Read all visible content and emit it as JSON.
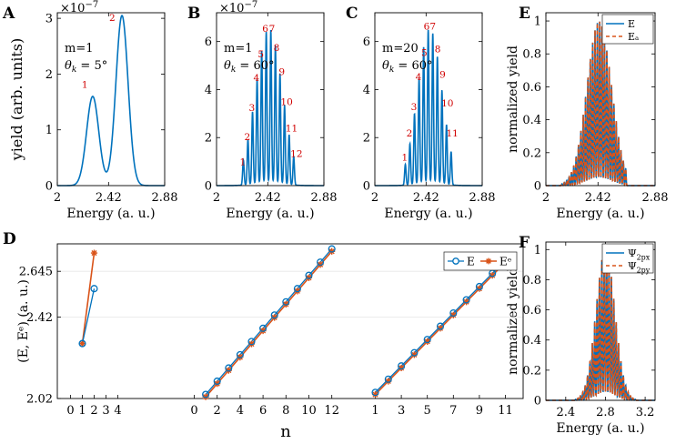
{
  "chart_data": [
    {
      "id": "A",
      "type": "line",
      "panel_label": "A",
      "ylabel": "yield (arb. units)",
      "xlabel": "Energy (a. u.)",
      "exponent_label": "×10",
      "exponent_sup": "−7",
      "xlim": [
        2,
        2.88
      ],
      "ylim": [
        0,
        3.1
      ],
      "xticks": [
        2,
        2.42,
        2.88
      ],
      "xtick_labels": [
        "2",
        "2.42",
        "2.88"
      ],
      "yticks": [
        0,
        1,
        2,
        3
      ],
      "ytick_labels": [
        "0",
        "1",
        "2",
        "3"
      ],
      "annotation_lines": [
        "m=1",
        "θk = 5°"
      ],
      "peaks": [
        {
          "center": 2.29,
          "amp": 1.6,
          "width": 0.05
        },
        {
          "center": 2.53,
          "amp": 3.05,
          "width": 0.05
        }
      ],
      "peak_labels": [
        {
          "text": "1",
          "x": 2.225,
          "y": 1.75
        },
        {
          "text": "2",
          "x": 2.45,
          "y": 2.95
        }
      ]
    },
    {
      "id": "B",
      "type": "line",
      "panel_label": "B",
      "xlabel": "Energy (a. u.)",
      "exponent_label": "×10",
      "exponent_sup": "−7",
      "xlim": [
        2,
        2.88
      ],
      "ylim": [
        0,
        7.2
      ],
      "xticks": [
        2,
        2.42,
        2.88
      ],
      "xtick_labels": [
        "2",
        "2.42",
        "2.88"
      ],
      "yticks": [
        0,
        2,
        4,
        6
      ],
      "ytick_labels": [
        "0",
        "2",
        "4",
        "6"
      ],
      "annotation_lines": [
        "m=1",
        "θk = 60°"
      ],
      "comb": {
        "start": 2.22,
        "step": 0.0375,
        "count": 12,
        "center": 2.43,
        "sigma": 0.11,
        "amp": 6.4,
        "width": 0.006,
        "floor": 0.4
      },
      "peak_labels": [
        {
          "text": "1",
          "x": 2.215,
          "y": 0.85
        },
        {
          "text": "2",
          "x": 2.252,
          "y": 1.9
        },
        {
          "text": "3",
          "x": 2.29,
          "y": 3.1
        },
        {
          "text": "4",
          "x": 2.327,
          "y": 4.35
        },
        {
          "text": "5",
          "x": 2.363,
          "y": 5.35
        },
        {
          "text": "6",
          "x": 2.4,
          "y": 6.4
        },
        {
          "text": "7",
          "x": 2.455,
          "y": 6.4
        },
        {
          "text": "8",
          "x": 2.492,
          "y": 5.6
        },
        {
          "text": "9",
          "x": 2.535,
          "y": 4.6
        },
        {
          "text": "10",
          "x": 2.575,
          "y": 3.35
        },
        {
          "text": "11",
          "x": 2.615,
          "y": 2.25
        },
        {
          "text": "12",
          "x": 2.655,
          "y": 1.2
        }
      ]
    },
    {
      "id": "C",
      "type": "line",
      "panel_label": "C",
      "xlabel": "Energy (a. u.)",
      "xlim": [
        2,
        2.88
      ],
      "ylim": [
        0,
        7.2
      ],
      "xticks": [
        2,
        2.42,
        2.88
      ],
      "xtick_labels": [
        "2",
        "2.42",
        "2.88"
      ],
      "yticks": [
        0,
        2,
        4,
        6
      ],
      "ytick_labels": [
        "0",
        "2",
        "4",
        "6"
      ],
      "annotation_lines": [
        "m=20",
        "θk = 60°"
      ],
      "comb": {
        "start": 2.25,
        "step": 0.0375,
        "count": 11,
        "center": 2.45,
        "sigma": 0.1,
        "amp": 6.4,
        "width": 0.006,
        "floor": 0.4
      },
      "peak_labels": [
        {
          "text": "1",
          "x": 2.245,
          "y": 1.05
        },
        {
          "text": "2",
          "x": 2.283,
          "y": 2.05
        },
        {
          "text": "3",
          "x": 2.32,
          "y": 3.15
        },
        {
          "text": "4",
          "x": 2.358,
          "y": 4.4
        },
        {
          "text": "5",
          "x": 2.405,
          "y": 5.4
        },
        {
          "text": "6",
          "x": 2.425,
          "y": 6.5
        },
        {
          "text": "7",
          "x": 2.475,
          "y": 6.5
        },
        {
          "text": "8",
          "x": 2.515,
          "y": 5.55
        },
        {
          "text": "9",
          "x": 2.555,
          "y": 4.5
        },
        {
          "text": "10",
          "x": 2.595,
          "y": 3.3
        },
        {
          "text": "11",
          "x": 2.635,
          "y": 2.05
        }
      ]
    },
    {
      "id": "E",
      "type": "line",
      "panel_label": "E",
      "ylabel": "normalized yield",
      "xlabel": "Energy (a. u.)",
      "xlim": [
        2,
        2.88
      ],
      "ylim": [
        0,
        1.05
      ],
      "xticks": [
        2,
        2.42,
        2.88
      ],
      "xtick_labels": [
        "2",
        "2.42",
        "2.88"
      ],
      "yticks": [
        0,
        0.2,
        0.4,
        0.6,
        0.8,
        1
      ],
      "ytick_labels": [
        "0",
        "0.2",
        "0.4",
        "0.6",
        "0.8",
        "1"
      ],
      "legend": [
        {
          "label": "E",
          "color": "#0072BD",
          "style": "solid"
        },
        {
          "label": "Eₐ",
          "color": "#D95319",
          "style": "dashed"
        }
      ],
      "legend_position": "top-right",
      "comb": {
        "start": 2.13,
        "step": 0.019,
        "count": 28,
        "center": 2.43,
        "sigma": 0.1,
        "amp": 1.0,
        "width": 0.0035,
        "floor": 0
      }
    },
    {
      "id": "F",
      "type": "line",
      "panel_label": "F",
      "ylabel": "normalized yield",
      "xlabel": "Energy (a. u.)",
      "xlim": [
        2.2,
        3.3
      ],
      "ylim": [
        0,
        1.05
      ],
      "xticks": [
        2.4,
        2.8,
        3.2
      ],
      "xtick_labels": [
        "2.4",
        "2.8",
        "3.2"
      ],
      "yticks": [
        0,
        0.2,
        0.4,
        0.6,
        0.8,
        1
      ],
      "ytick_labels": [
        "0",
        "0.2",
        "0.4",
        "0.6",
        "0.8",
        "1"
      ],
      "legend": [
        {
          "label": "Ψ2px",
          "color": "#0072BD",
          "style": "solid"
        },
        {
          "label": "Ψ2py",
          "color": "#D95319",
          "style": "dashed"
        }
      ],
      "legend_position": "top-right",
      "comb": {
        "start": 2.5,
        "step": 0.024,
        "count": 26,
        "center": 2.8,
        "sigma": 0.095,
        "amp": 1.0,
        "width": 0.0045,
        "floor": 0
      }
    },
    {
      "id": "D",
      "type": "line",
      "panel_label": "D",
      "ylabel": "(E, Eᵉ) (a. u.)",
      "xlabel": "n",
      "ylim": [
        2.02,
        2.78
      ],
      "yticks": [
        2.02,
        2.42,
        2.645
      ],
      "ytick_labels": [
        "2.02",
        "2.42",
        "2.645"
      ],
      "legend": [
        {
          "label": "E",
          "color": "#0072BD",
          "marker": "circle"
        },
        {
          "label": "Eᵉ",
          "color": "#D95319",
          "marker": "star"
        }
      ],
      "legend_position": "top-right",
      "xtick_labels": [
        "0",
        "1",
        "2",
        "3",
        "4",
        "0",
        "2",
        "4",
        "6",
        "8",
        "10",
        "12",
        "1",
        "3",
        "5",
        "7",
        "9",
        "11"
      ],
      "groups": [
        {
          "n": [
            1,
            2
          ],
          "E": [
            2.29,
            2.56
          ],
          "Ee": [
            2.29,
            2.735
          ]
        },
        {
          "n": [
            1,
            2,
            3,
            4,
            5,
            6,
            7,
            8,
            9,
            10,
            11,
            12
          ],
          "E": [
            2.04,
            2.105,
            2.17,
            2.235,
            2.3,
            2.365,
            2.43,
            2.495,
            2.56,
            2.625,
            2.69,
            2.755
          ],
          "Ee": [
            2.028,
            2.093,
            2.158,
            2.223,
            2.288,
            2.353,
            2.418,
            2.483,
            2.548,
            2.613,
            2.678,
            2.743
          ]
        },
        {
          "n": [
            1,
            2,
            3,
            4,
            5,
            6,
            7,
            8,
            9,
            10,
            11
          ],
          "E": [
            2.05,
            2.115,
            2.18,
            2.245,
            2.31,
            2.375,
            2.44,
            2.505,
            2.57,
            2.635,
            2.7
          ],
          "Ee": [
            2.04,
            2.105,
            2.17,
            2.235,
            2.3,
            2.365,
            2.43,
            2.495,
            2.56,
            2.625,
            2.69
          ]
        }
      ]
    }
  ],
  "colors": {
    "blue": "#0072BD",
    "orange": "#D95319",
    "annotation": "#D00000",
    "grid": "#e6e6e6"
  }
}
